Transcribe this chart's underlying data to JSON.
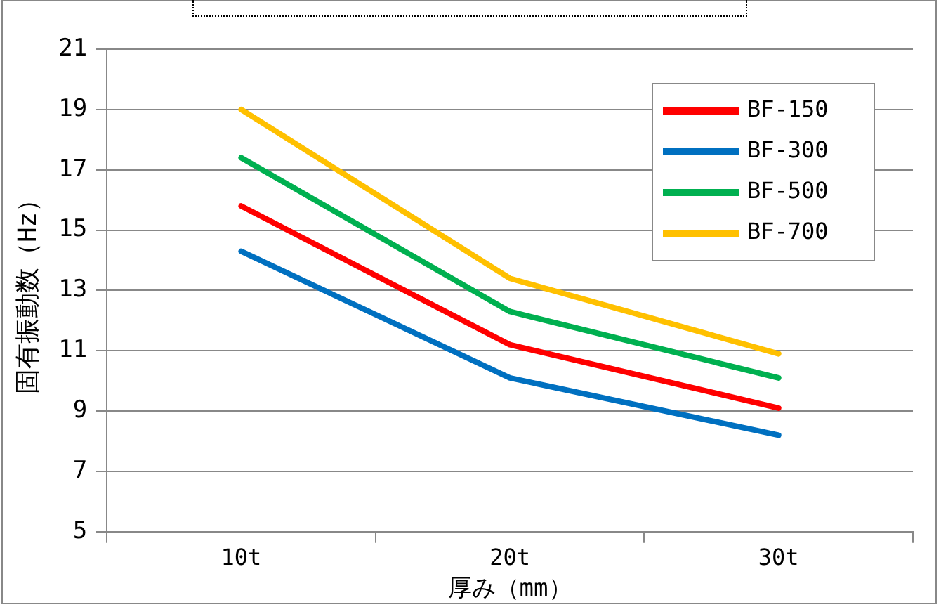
{
  "chart_data": {
    "type": "line",
    "xlabel": "厚み（mm）",
    "ylabel": "固有振動数（Hz）",
    "categories": [
      "10t",
      "20t",
      "30t"
    ],
    "series": [
      {
        "name": "BF-150",
        "color": "#ff0000",
        "values": [
          15.8,
          11.2,
          9.1
        ]
      },
      {
        "name": "BF-300",
        "color": "#0070c0",
        "values": [
          14.3,
          10.1,
          8.2
        ]
      },
      {
        "name": "BF-500",
        "color": "#00b050",
        "values": [
          17.4,
          12.3,
          10.1
        ]
      },
      {
        "name": "BF-700",
        "color": "#ffc000",
        "values": [
          19,
          13.4,
          10.9
        ]
      }
    ],
    "ylim": [
      5,
      21
    ],
    "yticks": [
      5,
      7,
      9,
      11,
      13,
      15,
      17,
      19,
      21
    ],
    "grid": "y",
    "legend": "top right",
    "marker": "none",
    "line_style": "solid"
  }
}
